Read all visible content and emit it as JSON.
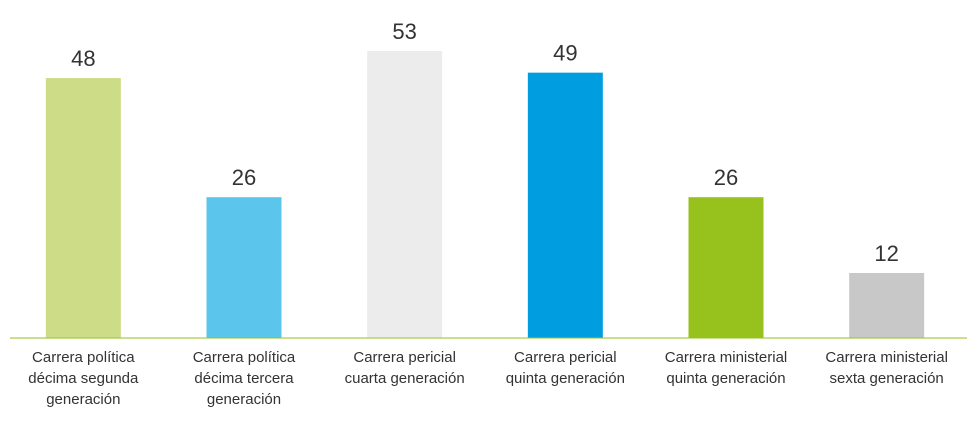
{
  "chart_data": {
    "type": "bar",
    "categories": [
      "Carrera política décima segunda generación",
      "Carrera política décima tercera generación",
      "Carrera pericial cuarta generación",
      "Carrera pericial quinta generación",
      "Carrera ministerial quinta generación",
      "Carrera ministerial sexta generación"
    ],
    "values": [
      48,
      26,
      53,
      49,
      26,
      12
    ],
    "colors": [
      "#cddc87",
      "#5bc5ec",
      "#ececec",
      "#009ee0",
      "#97c21e",
      "#c8c8c8"
    ]
  }
}
